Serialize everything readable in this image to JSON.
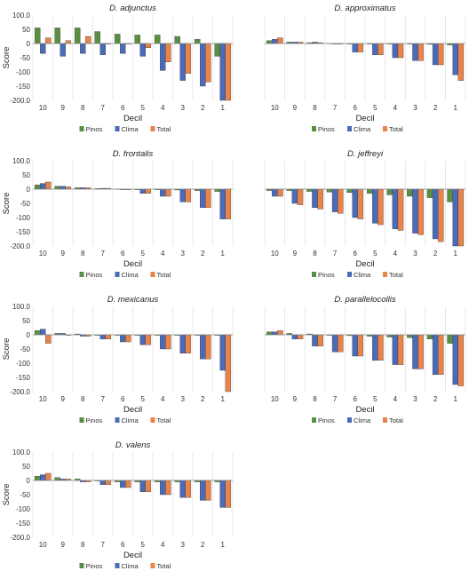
{
  "chart_data": [
    {
      "type": "bar",
      "title": "D. adjunctus",
      "xlabel": "Decil",
      "ylabel": "Score",
      "categories": [
        "10",
        "9",
        "8",
        "7",
        "6",
        "5",
        "4",
        "3",
        "2",
        "1"
      ],
      "ylim": [
        -200,
        100
      ],
      "yticks": [
        "100.0",
        "50",
        "0",
        "-50",
        "-100",
        "-150",
        "-200.0"
      ],
      "series": [
        {
          "name": "Pinos",
          "color": "#5a8f42",
          "values": [
            55,
            55,
            55,
            42,
            33,
            30,
            30,
            25,
            15,
            -45
          ]
        },
        {
          "name": "Clima",
          "color": "#4a6bb8",
          "values": [
            -35,
            -45,
            -35,
            -40,
            -35,
            -45,
            -95,
            -130,
            -150,
            -200
          ]
        },
        {
          "name": "Total",
          "color": "#e8844a",
          "values": [
            20,
            10,
            25,
            0,
            0,
            -15,
            -65,
            -105,
            -135,
            -200
          ]
        }
      ],
      "legend": "bottom-center"
    },
    {
      "type": "bar",
      "title": "D. approximatus",
      "xlabel": "Decil",
      "ylabel": "",
      "categories": [
        "10",
        "9",
        "8",
        "7",
        "6",
        "5",
        "4",
        "3",
        "2",
        "1"
      ],
      "ylim": [
        -200,
        100
      ],
      "yticks": [],
      "series": [
        {
          "name": "Pinos",
          "color": "#5a8f42",
          "values": [
            10,
            5,
            3,
            1,
            0,
            0,
            0,
            -2,
            -3,
            -5
          ]
        },
        {
          "name": "Clima",
          "color": "#4a6bb8",
          "values": [
            15,
            5,
            5,
            0,
            -30,
            -40,
            -50,
            -60,
            -75,
            -110
          ]
        },
        {
          "name": "Total",
          "color": "#e8844a",
          "values": [
            20,
            5,
            3,
            0,
            -30,
            -40,
            -50,
            -60,
            -75,
            -130
          ]
        }
      ],
      "legend": "bottom-center"
    },
    {
      "type": "bar",
      "title": "D. frontalis",
      "xlabel": "Decil",
      "ylabel": "Score",
      "categories": [
        "10",
        "9",
        "8",
        "7",
        "6",
        "5",
        "4",
        "3",
        "2",
        "1"
      ],
      "ylim": [
        -200,
        100
      ],
      "yticks": [
        "100.0",
        "50",
        "0",
        "-50",
        "-100",
        "-150",
        "-200.0"
      ],
      "series": [
        {
          "name": "Pinos",
          "color": "#5a8f42",
          "values": [
            15,
            10,
            5,
            2,
            1,
            0,
            -2,
            -3,
            -5,
            -8
          ]
        },
        {
          "name": "Clima",
          "color": "#4a6bb8",
          "values": [
            20,
            10,
            5,
            3,
            0,
            -15,
            -25,
            -45,
            -65,
            -105
          ]
        },
        {
          "name": "Total",
          "color": "#e8844a",
          "values": [
            25,
            8,
            5,
            3,
            -2,
            -15,
            -25,
            -45,
            -65,
            -105
          ]
        }
      ],
      "legend": "bottom-center"
    },
    {
      "type": "bar",
      "title": "D. jeffreyi",
      "xlabel": "Decil",
      "ylabel": "",
      "categories": [
        "10",
        "9",
        "8",
        "7",
        "6",
        "5",
        "4",
        "3",
        "2",
        "1"
      ],
      "ylim": [
        -200,
        100
      ],
      "yticks": [],
      "series": [
        {
          "name": "Pinos",
          "color": "#5a8f42",
          "values": [
            -5,
            -5,
            -8,
            -10,
            -12,
            -15,
            -20,
            -25,
            -30,
            -45
          ]
        },
        {
          "name": "Clima",
          "color": "#4a6bb8",
          "values": [
            -25,
            -50,
            -65,
            -80,
            -100,
            -120,
            -140,
            -155,
            -175,
            -200
          ]
        },
        {
          "name": "Total",
          "color": "#e8844a",
          "values": [
            -25,
            -55,
            -70,
            -85,
            -105,
            -125,
            -145,
            -160,
            -185,
            -200
          ]
        }
      ],
      "legend": "bottom-center"
    },
    {
      "type": "bar",
      "title": "D. mexicanus",
      "xlabel": "Decil",
      "ylabel": "Score",
      "categories": [
        "10",
        "9",
        "8",
        "7",
        "6",
        "5",
        "4",
        "3",
        "2",
        "1"
      ],
      "ylim": [
        -200,
        100
      ],
      "yticks": [
        "100.0",
        "50",
        "0",
        "-50",
        "-100",
        "-150",
        "-200.0"
      ],
      "series": [
        {
          "name": "Pinos",
          "color": "#5a8f42",
          "values": [
            15,
            5,
            3,
            0,
            0,
            0,
            0,
            0,
            0,
            0
          ]
        },
        {
          "name": "Clima",
          "color": "#4a6bb8",
          "values": [
            20,
            5,
            -5,
            -15,
            -25,
            -35,
            -50,
            -65,
            -85,
            -125
          ]
        },
        {
          "name": "Total",
          "color": "#e8844a",
          "values": [
            -30,
            0,
            -5,
            -15,
            -25,
            -35,
            -50,
            -65,
            -85,
            -200
          ]
        }
      ],
      "legend": "bottom-center"
    },
    {
      "type": "bar",
      "title": "D. parallelocollis",
      "xlabel": "Decil",
      "ylabel": "",
      "categories": [
        "10",
        "9",
        "8",
        "7",
        "6",
        "5",
        "4",
        "3",
        "2",
        "1"
      ],
      "ylim": [
        -200,
        100
      ],
      "yticks": [],
      "series": [
        {
          "name": "Pinos",
          "color": "#5a8f42",
          "values": [
            10,
            5,
            3,
            0,
            -3,
            -5,
            -8,
            -10,
            -15,
            -30
          ]
        },
        {
          "name": "Clima",
          "color": "#4a6bb8",
          "values": [
            10,
            -15,
            -40,
            -60,
            -75,
            -90,
            -105,
            -120,
            -140,
            -175
          ]
        },
        {
          "name": "Total",
          "color": "#e8844a",
          "values": [
            15,
            -15,
            -40,
            -60,
            -75,
            -90,
            -105,
            -120,
            -140,
            -180
          ]
        }
      ],
      "legend": "bottom-center"
    },
    {
      "type": "bar",
      "title": "D. valens",
      "xlabel": "Decil",
      "ylabel": "Score",
      "categories": [
        "10",
        "9",
        "8",
        "7",
        "6",
        "5",
        "4",
        "3",
        "2",
        "1"
      ],
      "ylim": [
        -200,
        100
      ],
      "yticks": [
        "100.0",
        "50",
        "0",
        "-50",
        "-100",
        "-150",
        "-200.0"
      ],
      "series": [
        {
          "name": "Pinos",
          "color": "#5a8f42",
          "values": [
            15,
            10,
            5,
            0,
            -5,
            -5,
            -5,
            -5,
            -5,
            -5
          ]
        },
        {
          "name": "Clima",
          "color": "#4a6bb8",
          "values": [
            20,
            5,
            -5,
            -15,
            -25,
            -40,
            -50,
            -60,
            -70,
            -95
          ]
        },
        {
          "name": "Total",
          "color": "#e8844a",
          "values": [
            25,
            5,
            -5,
            -15,
            -25,
            -40,
            -50,
            -60,
            -70,
            -95
          ]
        }
      ],
      "legend": "bottom-center"
    }
  ]
}
